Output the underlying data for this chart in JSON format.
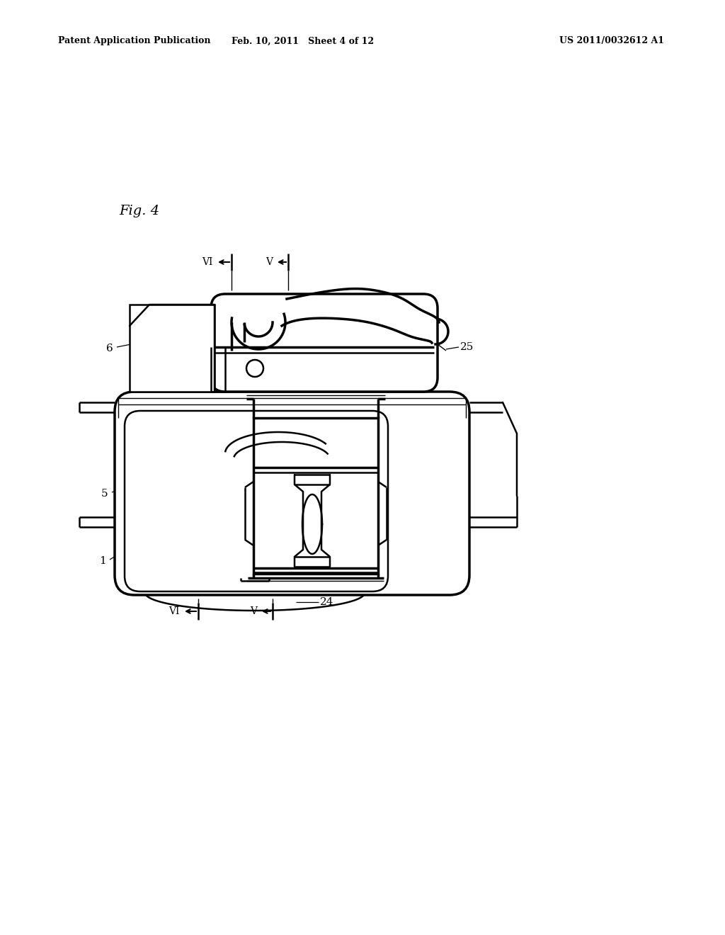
{
  "title_left": "Patent Application Publication",
  "title_center": "Feb. 10, 2011   Sheet 4 of 12",
  "title_right": "US 2011/0032612 A1",
  "fig_label": "Fig. 4",
  "background": "#ffffff",
  "lw_main": 1.8,
  "lw_thick": 2.5,
  "lw_thin": 1.0,
  "fontsize_header": 9,
  "fontsize_label": 11,
  "fontsize_fig": 14
}
